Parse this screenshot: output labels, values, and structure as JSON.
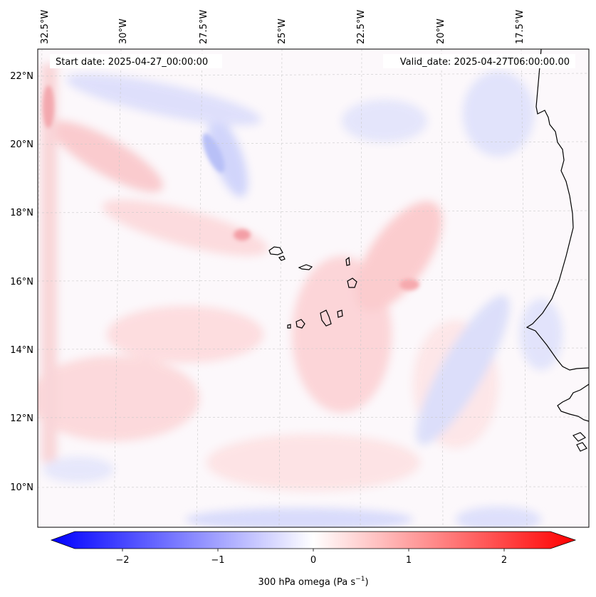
{
  "map": {
    "start_label": "Start date: 2025-04-27_00:00:00",
    "valid_label": "Valid_date: 2025-04-27T06:00:00.00",
    "lon_ticks": [
      "32.5°W",
      "30°W",
      "27.5°W",
      "25°W",
      "22.5°W",
      "20°W",
      "17.5°W"
    ],
    "lat_ticks": [
      "22°N",
      "20°N",
      "18°N",
      "16°N",
      "14°N",
      "12°N",
      "10°N"
    ],
    "gridlines": true,
    "projection_note": "",
    "colormap": {
      "negative": "#0000ff",
      "zero": "#ffffff",
      "positive": "#ff0000"
    }
  },
  "colorbar": {
    "label_prefix": "300 hPa omega (Pa s",
    "label_exp": "−1",
    "label_suffix": ")",
    "ticks": [
      "−2",
      "−1",
      "0",
      "1",
      "2"
    ],
    "range": [
      -2.6,
      2.6
    ],
    "extend": "both"
  }
}
